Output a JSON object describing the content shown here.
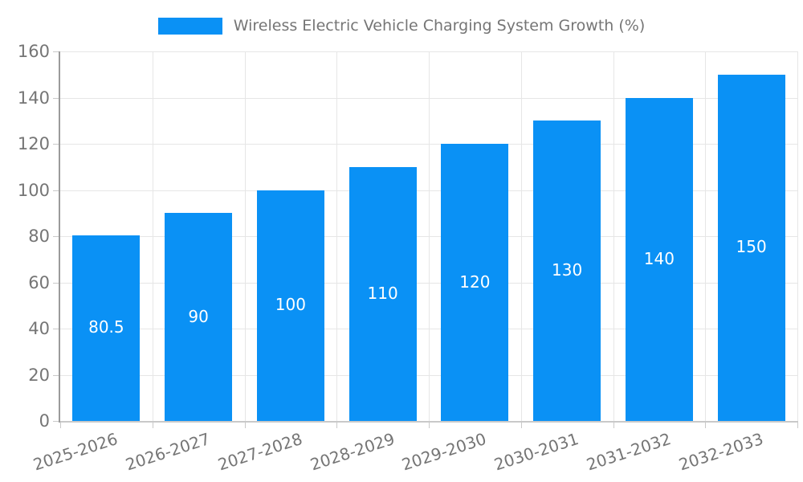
{
  "legend": {
    "label": "Wireless Electric Vehicle Charging System Growth (%)"
  },
  "chart_data": {
    "type": "bar",
    "title": "Wireless Electric Vehicle Charging System Growth (%)",
    "categories": [
      "2025-2026",
      "2026-2027",
      "2027-2028",
      "2028-2029",
      "2029-2030",
      "2030-2031",
      "2031-2032",
      "2032-2033"
    ],
    "values": [
      80.5,
      90,
      100,
      110,
      120,
      130,
      140,
      150
    ],
    "bar_labels": [
      "80.5",
      "90",
      "100",
      "110",
      "120",
      "130",
      "140",
      "150"
    ],
    "xlabel": "",
    "ylabel": "",
    "ylim": [
      0,
      160
    ],
    "yticks": [
      0,
      20,
      40,
      60,
      80,
      100,
      120,
      140,
      160
    ],
    "grid": "both",
    "legend_position": "top-center",
    "colors": {
      "bar": "#0a91f5",
      "grid": "#e6e6e6",
      "axis_left": "#9b9b9b",
      "axis_bottom": "#c9c9c9",
      "tick_label": "#757575",
      "bar_label": "#ffffff",
      "background": "#ffffff"
    }
  }
}
